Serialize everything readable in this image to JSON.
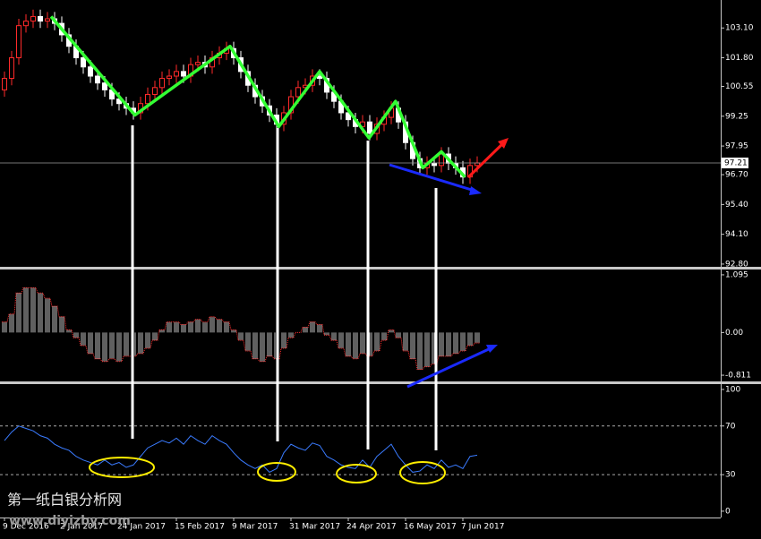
{
  "chart_data": [
    {
      "type": "candlestick",
      "categories": [
        "9 Dec 2016",
        null,
        null,
        null,
        null,
        null,
        null,
        null,
        "2 Jan 2017",
        null,
        null,
        null,
        null,
        null,
        null,
        null,
        "24 Jan 2017",
        null,
        null,
        null,
        null,
        null,
        null,
        null,
        "15 Feb 2017",
        null,
        null,
        null,
        null,
        null,
        null,
        null,
        "9 Mar 2017",
        null,
        null,
        null,
        null,
        null,
        null,
        null,
        "31 Mar 2017",
        null,
        null,
        null,
        null,
        null,
        null,
        null,
        "24 Apr 2017",
        null,
        null,
        null,
        null,
        null,
        null,
        null,
        "16 May 2017",
        null,
        null,
        null,
        null,
        null,
        null,
        null,
        "7 Jun 2017",
        null,
        null
      ],
      "open": [
        100.4,
        100.9,
        101.8,
        103.2,
        103.4,
        103.6,
        103.4,
        103.5,
        103.3,
        102.8,
        102.3,
        101.8,
        101.4,
        101.0,
        100.7,
        100.4,
        100.0,
        99.8,
        99.6,
        99.4,
        99.8,
        100.2,
        100.5,
        100.9,
        101.0,
        101.2,
        101.0,
        101.5,
        101.6,
        101.4,
        101.8,
        102.0,
        102.2,
        101.8,
        101.2,
        100.6,
        100.1,
        99.7,
        99.3,
        98.9,
        99.4,
        100.1,
        100.5,
        100.6,
        101.0,
        100.9,
        100.3,
        99.9,
        99.4,
        99.1,
        98.8,
        99.0,
        98.5,
        98.9,
        99.2,
        99.6,
        99.0,
        98.1,
        97.4,
        97.0,
        97.2,
        97.1,
        97.6,
        97.2,
        97.0,
        96.6,
        97.1
      ],
      "high": [
        101.2,
        102.1,
        103.5,
        103.7,
        103.9,
        103.9,
        103.8,
        103.8,
        103.6,
        103.1,
        102.6,
        102.1,
        101.7,
        101.3,
        101.0,
        100.7,
        100.3,
        100.1,
        99.9,
        100.1,
        100.5,
        100.8,
        101.2,
        101.3,
        101.5,
        101.5,
        101.8,
        101.9,
        101.9,
        102.1,
        102.3,
        102.5,
        102.5,
        102.1,
        101.5,
        100.9,
        100.4,
        100.0,
        99.6,
        99.7,
        100.4,
        100.8,
        100.9,
        101.3,
        101.3,
        101.2,
        100.6,
        100.2,
        99.7,
        99.4,
        99.3,
        99.3,
        99.2,
        99.5,
        99.9,
        99.9,
        99.3,
        98.4,
        97.7,
        97.5,
        97.5,
        97.9,
        97.9,
        97.5,
        97.3,
        97.4,
        97.5
      ],
      "low": [
        100.1,
        100.6,
        101.5,
        102.9,
        103.1,
        103.1,
        103.1,
        103.0,
        102.5,
        102.0,
        101.5,
        101.1,
        100.7,
        100.4,
        100.1,
        99.7,
        99.5,
        99.3,
        99.1,
        99.1,
        99.5,
        99.9,
        100.2,
        100.6,
        100.7,
        100.7,
        100.7,
        101.2,
        101.1,
        101.1,
        101.5,
        101.7,
        101.5,
        100.9,
        100.3,
        99.8,
        99.4,
        99.0,
        98.6,
        98.6,
        99.1,
        99.8,
        100.2,
        100.3,
        100.6,
        100.0,
        99.6,
        99.1,
        98.8,
        98.5,
        98.5,
        98.2,
        98.2,
        98.6,
        98.9,
        98.7,
        97.8,
        97.1,
        96.7,
        96.7,
        96.8,
        96.8,
        96.9,
        96.7,
        96.3,
        96.3,
        96.8
      ],
      "close": [
        100.9,
        101.8,
        103.2,
        103.4,
        103.6,
        103.4,
        103.5,
        103.3,
        102.8,
        102.3,
        101.8,
        101.4,
        101.0,
        100.7,
        100.4,
        100.0,
        99.8,
        99.6,
        99.4,
        99.8,
        100.2,
        100.5,
        100.9,
        101.0,
        101.2,
        101.0,
        101.5,
        101.6,
        101.4,
        101.8,
        102.0,
        102.2,
        101.8,
        101.2,
        100.6,
        100.1,
        99.7,
        99.3,
        98.9,
        99.4,
        100.1,
        100.5,
        100.6,
        101.0,
        100.9,
        100.3,
        99.9,
        99.4,
        99.1,
        98.8,
        99.0,
        98.5,
        98.9,
        99.2,
        99.6,
        99.0,
        98.1,
        97.4,
        97.0,
        97.2,
        97.1,
        97.6,
        97.2,
        97.0,
        96.6,
        97.1,
        97.21
      ],
      "up_color": "#ff2a2a",
      "down_color": "#ffffff",
      "ylim": [
        92.68,
        104.32
      ],
      "yticks": [
        {
          "value": 103.1,
          "label": "103.10"
        },
        {
          "value": 101.8,
          "label": "101.80"
        },
        100.55,
        99.25,
        97.95,
        {
          "value": 96.7,
          "label": "96.70"
        },
        {
          "value": 95.4,
          "label": "95.40"
        },
        {
          "value": 94.1,
          "label": "94.10"
        },
        {
          "value": 92.8,
          "label": "92.80"
        }
      ],
      "trendline": {
        "color": "#33ff33",
        "x": [
          6.5,
          18.2,
          31.5,
          38.3,
          44,
          50.9,
          54.6,
          58.4,
          61,
          64.3
        ],
        "y": [
          103.6,
          99.3,
          102.3,
          98.8,
          101.2,
          98.3,
          99.9,
          97.0,
          97.7,
          96.6
        ]
      }
    },
    {
      "type": "bar",
      "values": [
        0.2,
        0.35,
        0.75,
        0.85,
        0.85,
        0.75,
        0.65,
        0.5,
        0.3,
        0.05,
        -0.1,
        -0.25,
        -0.4,
        -0.5,
        -0.55,
        -0.5,
        -0.55,
        -0.45,
        -0.45,
        -0.4,
        -0.3,
        -0.15,
        0.05,
        0.2,
        0.2,
        0.15,
        0.2,
        0.25,
        0.2,
        0.3,
        0.25,
        0.2,
        0.05,
        -0.15,
        -0.35,
        -0.5,
        -0.55,
        -0.45,
        -0.5,
        -0.3,
        -0.1,
        0.0,
        0.1,
        0.2,
        0.15,
        -0.05,
        -0.15,
        -0.3,
        -0.45,
        -0.5,
        -0.4,
        -0.45,
        -0.35,
        -0.15,
        0.05,
        -0.1,
        -0.35,
        -0.5,
        -0.7,
        -0.65,
        -0.6,
        -0.45,
        -0.45,
        -0.4,
        -0.35,
        -0.25,
        -0.2
      ],
      "color": "#c0c0c0",
      "outline_color": "#ff3030",
      "ylim": [
        -0.929,
        1.196
      ],
      "yticks": [
        1.095,
        {
          "value": 0,
          "label": "0.00"
        },
        -0.811
      ]
    },
    {
      "type": "line",
      "values": [
        58,
        65,
        70,
        68,
        66,
        62,
        60,
        55,
        52,
        50,
        45,
        42,
        40,
        38,
        42,
        38,
        40,
        36,
        38,
        45,
        52,
        55,
        58,
        56,
        60,
        55,
        62,
        58,
        55,
        62,
        58,
        55,
        48,
        42,
        38,
        35,
        38,
        32,
        35,
        48,
        55,
        52,
        50,
        56,
        54,
        45,
        42,
        38,
        36,
        35,
        42,
        36,
        45,
        50,
        55,
        45,
        38,
        32,
        33,
        38,
        35,
        42,
        36,
        38,
        35,
        45,
        46
      ],
      "color": "#3a7bff",
      "ylim": [
        -5.2,
        104.4
      ],
      "yticks": [
        100,
        70,
        30,
        0
      ],
      "levels": [
        70,
        30
      ]
    }
  ],
  "watermark": {
    "title": "第一纸白银分析网",
    "url": "www.diyizby.com"
  }
}
